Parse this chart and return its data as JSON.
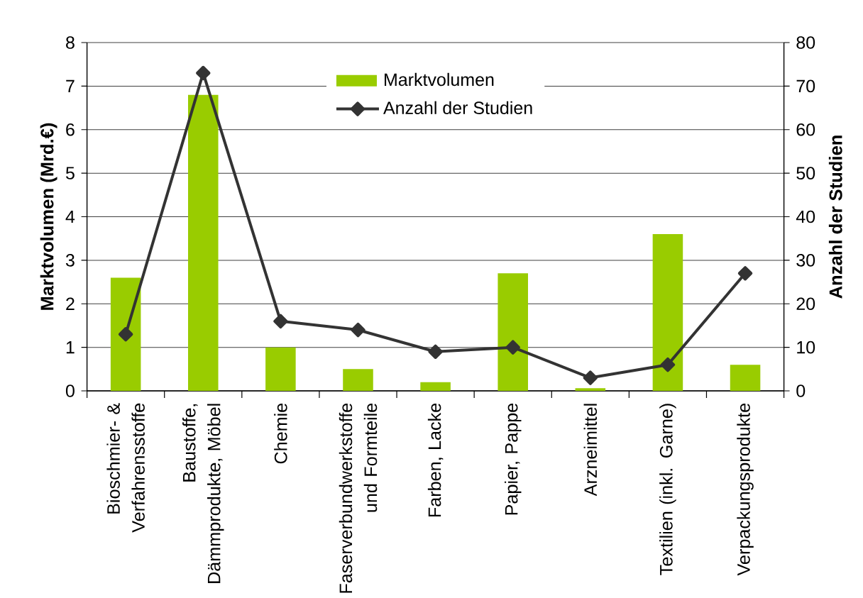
{
  "chart_data": {
    "type": "bar",
    "categories": [
      "Bioschmier- & Verfahrensstoffe",
      "Baustoffe, Dämmprodukte, Möbel",
      "Chemie",
      "Faserverbundwerkstoffe und Formteile",
      "Farben, Lacke",
      "Papier, Pappe",
      "Arzneimittel",
      "Textilien (inkl. Garne)",
      "Verpackungsprodukte"
    ],
    "series": [
      {
        "name": "Marktvolumen",
        "color": "#99cc00",
        "values": [
          2.6,
          6.8,
          1.0,
          0.5,
          0.2,
          2.7,
          0.06,
          3.6,
          0.6
        ]
      },
      {
        "name": "Anzahl der Studien",
        "type": "line",
        "axis": "y2",
        "color": "#333333",
        "marker": "diamond",
        "values": [
          13,
          73,
          16,
          14,
          9,
          10,
          3,
          6,
          27
        ]
      }
    ],
    "ylabel": "Marktvolumen (Mrd.€)",
    "y2label": "Anzahl der Studien",
    "ylim": [
      0,
      8
    ],
    "yticks": [
      0,
      1,
      2,
      3,
      4,
      5,
      6,
      7,
      8
    ],
    "y2lim": [
      0,
      80
    ],
    "y2ticks": [
      0,
      10,
      20,
      30,
      40,
      50,
      60,
      70,
      80
    ],
    "grid": "y",
    "legend": "top"
  }
}
